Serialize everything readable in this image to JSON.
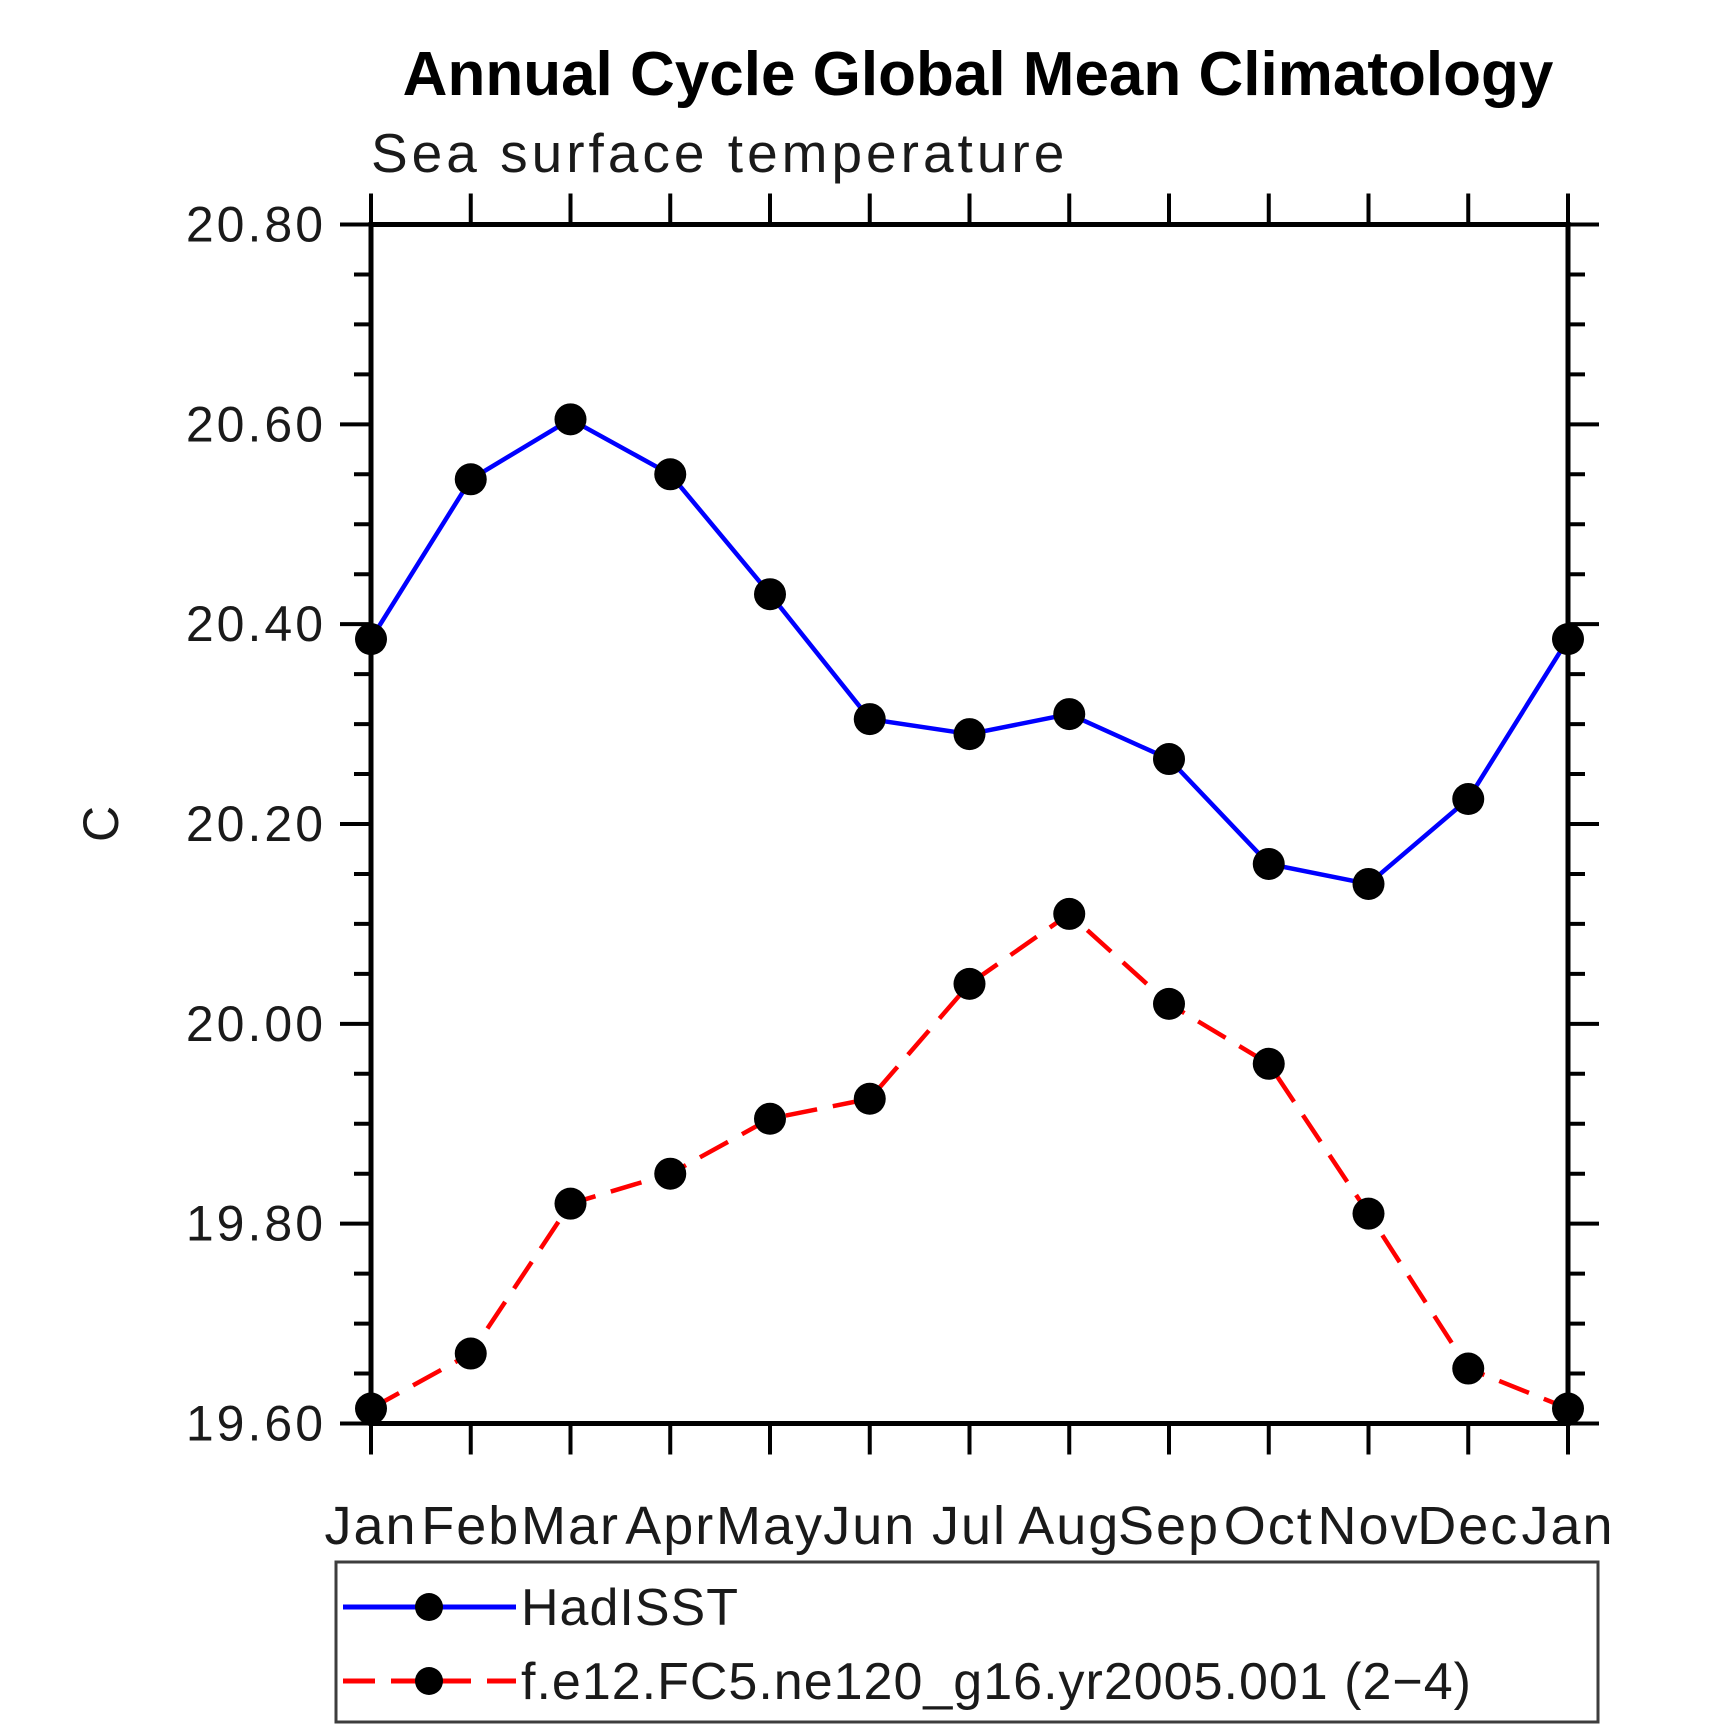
{
  "chart_data": {
    "type": "line",
    "title": "Annual Cycle Global Mean Climatology",
    "subtitle": "Sea surface temperature",
    "ylabel": "C",
    "xlabel": "",
    "x_categories": [
      "Jan",
      "Feb",
      "Mar",
      "Apr",
      "May",
      "Jun",
      "Jul",
      "Aug",
      "Sep",
      "Oct",
      "Nov",
      "Dec",
      "Jan"
    ],
    "ylim": [
      19.6,
      20.8
    ],
    "ytick_major_interval": 0.2,
    "ytick_minor_interval": 0.05,
    "ytick_labels": [
      "20.80",
      "20.60",
      "20.40",
      "20.20",
      "20.00",
      "19.80",
      "19.60"
    ],
    "grid": false,
    "legend_position": "bottom-left",
    "series": [
      {
        "name": "HadISST",
        "color": "#0000ff",
        "line_style": "solid",
        "marker": "filled-circle",
        "marker_color": "#000000",
        "values": [
          20.385,
          20.545,
          20.605,
          20.55,
          20.43,
          20.305,
          20.29,
          20.31,
          20.265,
          20.16,
          20.14,
          20.225,
          20.385
        ]
      },
      {
        "name": "f.e12.FC5.ne120_g16.yr2005.001 (2−4)",
        "color": "#ff0000",
        "line_style": "dashed",
        "marker": "filled-circle",
        "marker_color": "#000000",
        "values": [
          19.615,
          19.67,
          19.82,
          19.85,
          19.905,
          19.925,
          20.04,
          20.11,
          20.02,
          19.96,
          19.81,
          19.655,
          19.615
        ]
      }
    ]
  },
  "colors": {
    "background": "#ffffff",
    "axis": "#000000",
    "text": "#1a1a1a",
    "legend_border": "#3d3d3d",
    "series_blue": "#0000ff",
    "series_red": "#ff0000",
    "marker": "#000000"
  }
}
